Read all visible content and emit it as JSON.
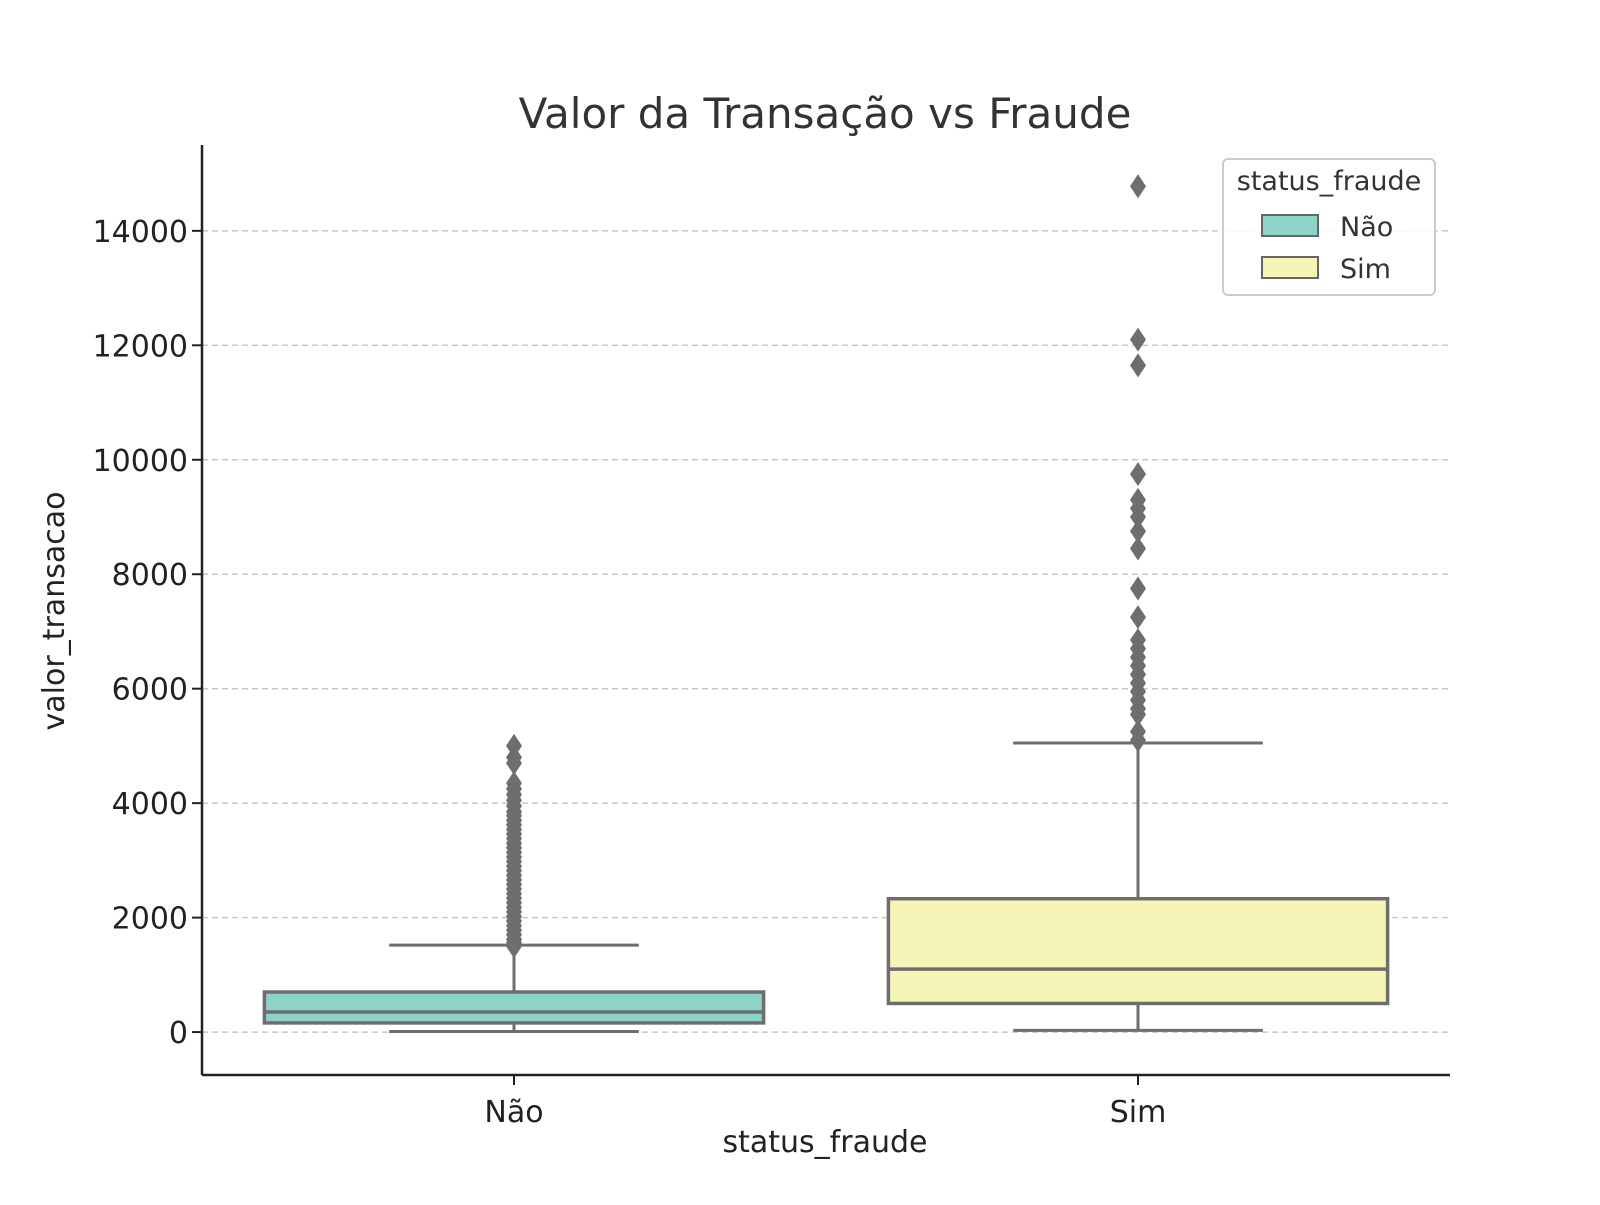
{
  "chart_data": {
    "type": "box",
    "title": "Valor da Transação vs Fraude",
    "xlabel": "status_fraude",
    "ylabel": "valor_transacao",
    "categories": [
      "Não",
      "Sim"
    ],
    "ylim": [
      -750,
      15500
    ],
    "yticks": [
      0,
      2000,
      4000,
      6000,
      8000,
      10000,
      12000,
      14000
    ],
    "grid": "horizontal dashed",
    "legend": {
      "title": "status_fraude",
      "placement": "top-right",
      "entries": [
        "Não",
        "Sim"
      ]
    },
    "series": [
      {
        "name": "Não",
        "color": "#8dd3c7",
        "whisker_low": 10,
        "q1": 160,
        "median": 350,
        "q3": 700,
        "whisker_high": 1520,
        "outliers": [
          1500,
          1560,
          1620,
          1700,
          1780,
          1860,
          1940,
          2020,
          2100,
          2180,
          2260,
          2340,
          2420,
          2500,
          2580,
          2660,
          2740,
          2820,
          2900,
          2980,
          3060,
          3140,
          3220,
          3300,
          3380,
          3460,
          3540,
          3620,
          3700,
          3780,
          3850,
          3950,
          4050,
          4150,
          4250,
          4350,
          4700,
          4800,
          5000
        ]
      },
      {
        "name": "Sim",
        "color": "#f5f5b8",
        "whisker_low": 30,
        "q1": 500,
        "median": 1100,
        "q3": 2330,
        "whisker_high": 5050,
        "outliers": [
          5100,
          5250,
          5550,
          5650,
          5800,
          5950,
          6100,
          6250,
          6400,
          6550,
          6700,
          6850,
          7250,
          7750,
          8450,
          8750,
          9000,
          9150,
          9300,
          9750,
          11650,
          12100,
          14780
        ]
      }
    ]
  }
}
